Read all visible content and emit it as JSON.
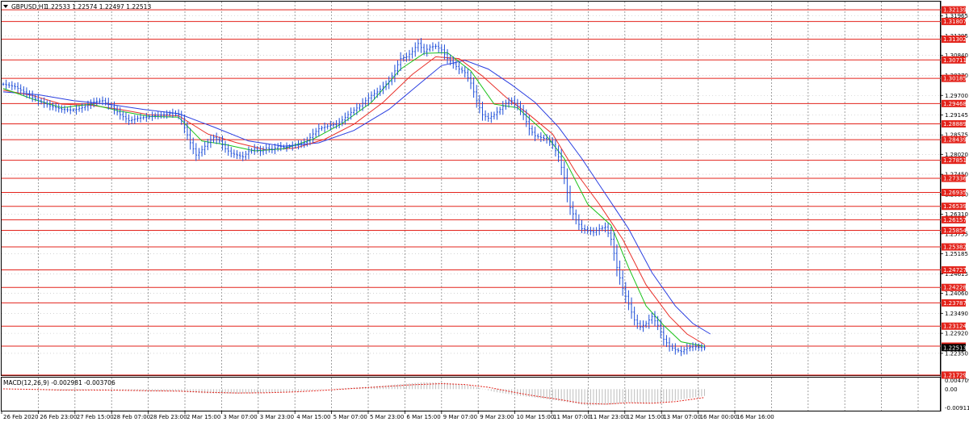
{
  "header": {
    "symbol": "GBPUSD,H1",
    "ohlc": "1.22533 1.22574 1.22497 1.22513",
    "dropdown_icon": "triangle-down-icon"
  },
  "colors": {
    "price_bars": "#1f4fd8",
    "ma_fast": "#19c219",
    "ma_mid": "#e8302a",
    "ma_slow": "#2a3ee0",
    "level_line": "#e3231b",
    "level_tag_bg": "#e3231b",
    "grid": "#888888",
    "macd_histogram": "#bdbdbd",
    "macd_signal": "#e3231b"
  },
  "chart_data": [
    {
      "type": "line",
      "title": "",
      "price_axis_ticks": [
        "1.31965",
        "1.31395",
        "1.30840",
        "1.30270",
        "1.29700",
        "1.29145",
        "1.28575",
        "1.28020",
        "1.27450",
        "1.26880",
        "1.26310",
        "1.25755",
        "1.25185",
        "1.24615",
        "1.24060",
        "1.23490",
        "1.22920",
        "1.22350"
      ],
      "x_tick_labels": [
        "26 Feb 2020",
        "26 Feb 23:00",
        "27 Feb 15:00",
        "28 Feb 07:00",
        "28 Feb 23:00",
        "2 Mar 15:00",
        "3 Mar 07:00",
        "3 Mar 23:00",
        "4 Mar 15:00",
        "5 Mar 07:00",
        "5 Mar 23:00",
        "6 Mar 15:00",
        "9 Mar 07:00",
        "9 Mar 23:00",
        "10 Mar 15:00",
        "11 Mar 07:00",
        "11 Mar 23:00",
        "12 Mar 15:00",
        "13 Mar 07:00",
        "16 Mar 00:00",
        "16 Mar 16:00"
      ],
      "ylim": [
        1.2175,
        1.3235
      ],
      "horizontal_levels": [
        "1.32139",
        "1.31807",
        "1.31302",
        "1.30711",
        "1.30185",
        "1.29468",
        "1.28889",
        "1.28439",
        "1.27851",
        "1.27336",
        "1.26935",
        "1.26539",
        "1.26157",
        "1.25854",
        "1.25382",
        "1.24727",
        "1.24228",
        "1.23787",
        "1.23124",
        "1.22555",
        "1.21729"
      ],
      "current_price": "1.22513",
      "price_series": [
        [
          0,
          1.3002
        ],
        [
          4,
          1.2995
        ],
        [
          8,
          1.2975
        ],
        [
          12,
          1.2955
        ],
        [
          16,
          1.294
        ],
        [
          20,
          1.293
        ],
        [
          24,
          1.2928
        ],
        [
          28,
          1.2938
        ],
        [
          31,
          1.2952
        ],
        [
          34,
          1.2955
        ],
        [
          37,
          1.2938
        ],
        [
          40,
          1.2915
        ],
        [
          43,
          1.2898
        ],
        [
          46,
          1.2905
        ],
        [
          49,
          1.2908
        ],
        [
          52,
          1.2913
        ],
        [
          55,
          1.2915
        ],
        [
          58,
          1.292
        ],
        [
          60,
          1.2915
        ],
        [
          62,
          1.288
        ],
        [
          64,
          1.2835
        ],
        [
          66,
          1.28
        ],
        [
          68,
          1.2815
        ],
        [
          70,
          1.2835
        ],
        [
          72,
          1.285
        ],
        [
          74,
          1.284
        ],
        [
          76,
          1.2818
        ],
        [
          78,
          1.2805
        ],
        [
          80,
          1.28
        ],
        [
          82,
          1.2795
        ],
        [
          84,
          1.281
        ],
        [
          86,
          1.2818
        ],
        [
          88,
          1.281
        ],
        [
          90,
          1.282
        ],
        [
          92,
          1.2815
        ],
        [
          94,
          1.2825
        ],
        [
          96,
          1.2822
        ],
        [
          98,
          1.2825
        ],
        [
          100,
          1.2828
        ],
        [
          102,
          1.2832
        ],
        [
          104,
          1.284
        ],
        [
          106,
          1.286
        ],
        [
          108,
          1.2875
        ],
        [
          110,
          1.288
        ],
        [
          112,
          1.2885
        ],
        [
          114,
          1.2888
        ],
        [
          116,
          1.29
        ],
        [
          118,
          1.2915
        ],
        [
          120,
          1.2928
        ],
        [
          122,
          1.294
        ],
        [
          124,
          1.2955
        ],
        [
          126,
          1.297
        ],
        [
          128,
          1.298
        ],
        [
          130,
          1.2995
        ],
        [
          132,
          1.301
        ],
        [
          134,
          1.304
        ],
        [
          136,
          1.3075
        ],
        [
          138,
          1.308
        ],
        [
          140,
          1.3095
        ],
        [
          142,
          1.3118
        ],
        [
          144,
          1.3095
        ],
        [
          146,
          1.3108
        ],
        [
          148,
          1.311
        ],
        [
          150,
          1.31
        ],
        [
          152,
          1.3075
        ],
        [
          154,
          1.306
        ],
        [
          156,
          1.3045
        ],
        [
          158,
          1.3035
        ],
        [
          160,
          1.3005
        ],
        [
          162,
          1.2955
        ],
        [
          164,
          1.2915
        ],
        [
          166,
          1.2905
        ],
        [
          168,
          1.2915
        ],
        [
          170,
          1.293
        ],
        [
          172,
          1.2948
        ],
        [
          174,
          1.2955
        ],
        [
          176,
          1.294
        ],
        [
          178,
          1.2915
        ],
        [
          180,
          1.2875
        ],
        [
          182,
          1.2855
        ],
        [
          184,
          1.285
        ],
        [
          186,
          1.2845
        ],
        [
          188,
          1.283
        ],
        [
          190,
          1.2795
        ],
        [
          192,
          1.2735
        ],
        [
          194,
          1.265
        ],
        [
          196,
          1.2615
        ],
        [
          198,
          1.259
        ],
        [
          200,
          1.2585
        ],
        [
          202,
          1.258
        ],
        [
          204,
          1.259
        ],
        [
          206,
          1.2595
        ],
        [
          208,
          1.256
        ],
        [
          210,
          1.248
        ],
        [
          212,
          1.242
        ],
        [
          214,
          1.2375
        ],
        [
          216,
          1.233
        ],
        [
          218,
          1.231
        ],
        [
          220,
          1.232
        ],
        [
          222,
          1.234
        ],
        [
          224,
          1.2315
        ],
        [
          226,
          1.2275
        ],
        [
          228,
          1.2255
        ],
        [
          230,
          1.2245
        ],
        [
          232,
          1.224
        ],
        [
          234,
          1.225
        ],
        [
          236,
          1.2255
        ],
        [
          238,
          1.2252
        ],
        [
          240,
          1.2251
        ]
      ],
      "ma_fast_series": [
        [
          0,
          1.299
        ],
        [
          10,
          1.296
        ],
        [
          20,
          1.2935
        ],
        [
          30,
          1.2945
        ],
        [
          40,
          1.2925
        ],
        [
          50,
          1.291
        ],
        [
          60,
          1.2908
        ],
        [
          68,
          1.284
        ],
        [
          76,
          1.283
        ],
        [
          86,
          1.2812
        ],
        [
          96,
          1.2818
        ],
        [
          106,
          1.2845
        ],
        [
          116,
          1.289
        ],
        [
          126,
          1.295
        ],
        [
          136,
          1.3045
        ],
        [
          144,
          1.309
        ],
        [
          152,
          1.3092
        ],
        [
          160,
          1.304
        ],
        [
          168,
          1.2945
        ],
        [
          176,
          1.2935
        ],
        [
          184,
          1.2875
        ],
        [
          192,
          1.279
        ],
        [
          200,
          1.266
        ],
        [
          208,
          1.26
        ],
        [
          214,
          1.248
        ],
        [
          220,
          1.237
        ],
        [
          226,
          1.2315
        ],
        [
          232,
          1.2268
        ],
        [
          240,
          1.2255
        ]
      ],
      "ma_mid_series": [
        [
          0,
          1.2985
        ],
        [
          10,
          1.297
        ],
        [
          20,
          1.2945
        ],
        [
          30,
          1.2942
        ],
        [
          40,
          1.293
        ],
        [
          50,
          1.2915
        ],
        [
          60,
          1.2912
        ],
        [
          70,
          1.286
        ],
        [
          80,
          1.2835
        ],
        [
          90,
          1.2815
        ],
        [
          100,
          1.282
        ],
        [
          110,
          1.2845
        ],
        [
          120,
          1.2888
        ],
        [
          130,
          1.295
        ],
        [
          140,
          1.303
        ],
        [
          148,
          1.308
        ],
        [
          156,
          1.3075
        ],
        [
          164,
          1.3025
        ],
        [
          172,
          1.2965
        ],
        [
          180,
          1.2915
        ],
        [
          188,
          1.286
        ],
        [
          196,
          1.275
        ],
        [
          204,
          1.266
        ],
        [
          212,
          1.256
        ],
        [
          220,
          1.243
        ],
        [
          228,
          1.234
        ],
        [
          234,
          1.229
        ],
        [
          240,
          1.226
        ]
      ],
      "ma_slow_series": [
        [
          0,
          1.298
        ],
        [
          12,
          1.2972
        ],
        [
          24,
          1.2955
        ],
        [
          36,
          1.2945
        ],
        [
          48,
          1.293
        ],
        [
          60,
          1.2918
        ],
        [
          72,
          1.288
        ],
        [
          84,
          1.284
        ],
        [
          96,
          1.2825
        ],
        [
          108,
          1.2835
        ],
        [
          120,
          1.287
        ],
        [
          132,
          1.293
        ],
        [
          142,
          1.3
        ],
        [
          150,
          1.3055
        ],
        [
          158,
          1.307
        ],
        [
          166,
          1.3045
        ],
        [
          174,
          1.3
        ],
        [
          182,
          1.295
        ],
        [
          190,
          1.288
        ],
        [
          198,
          1.279
        ],
        [
          206,
          1.269
        ],
        [
          214,
          1.259
        ],
        [
          222,
          1.2465
        ],
        [
          230,
          1.237
        ],
        [
          236,
          1.232
        ],
        [
          242,
          1.229
        ]
      ]
    },
    {
      "type": "bar",
      "title": "MACD(12,26,9) -0.002981 -0.003706",
      "ylim": [
        -0.009112,
        0.004709
      ],
      "axis_ticks": [
        "0.004709",
        "0.00",
        "-0.009112"
      ],
      "histogram": [
        [
          0,
          0.0
        ],
        [
          10,
          -0.0003
        ],
        [
          20,
          -0.0006
        ],
        [
          30,
          -0.0004
        ],
        [
          40,
          -0.0007
        ],
        [
          50,
          -0.0009
        ],
        [
          60,
          -0.001
        ],
        [
          68,
          -0.0018
        ],
        [
          76,
          -0.002
        ],
        [
          86,
          -0.0018
        ],
        [
          96,
          -0.0013
        ],
        [
          106,
          -0.0005
        ],
        [
          116,
          0.0004
        ],
        [
          126,
          0.0012
        ],
        [
          136,
          0.0022
        ],
        [
          144,
          0.003
        ],
        [
          152,
          0.0028
        ],
        [
          160,
          0.0015
        ],
        [
          168,
          -0.0012
        ],
        [
          176,
          -0.0028
        ],
        [
          184,
          -0.004
        ],
        [
          192,
          -0.0055
        ],
        [
          200,
          -0.0072
        ],
        [
          208,
          -0.0068
        ],
        [
          214,
          -0.0058
        ],
        [
          220,
          -0.0065
        ],
        [
          226,
          -0.006
        ],
        [
          232,
          -0.0045
        ],
        [
          240,
          -0.003
        ]
      ],
      "signal": [
        [
          0,
          0.0001
        ],
        [
          10,
          -0.0001
        ],
        [
          20,
          -0.0004
        ],
        [
          30,
          -0.0004
        ],
        [
          40,
          -0.0005
        ],
        [
          50,
          -0.0007
        ],
        [
          60,
          -0.0009
        ],
        [
          70,
          -0.0014
        ],
        [
          80,
          -0.0017
        ],
        [
          90,
          -0.0016
        ],
        [
          100,
          -0.0012
        ],
        [
          110,
          -0.0005
        ],
        [
          120,
          0.0003
        ],
        [
          130,
          0.0011
        ],
        [
          140,
          0.0019
        ],
        [
          150,
          0.0024
        ],
        [
          158,
          0.002
        ],
        [
          166,
          0.0008
        ],
        [
          174,
          -0.0012
        ],
        [
          182,
          -0.003
        ],
        [
          190,
          -0.0045
        ],
        [
          198,
          -0.0062
        ],
        [
          206,
          -0.0066
        ],
        [
          214,
          -0.006
        ],
        [
          222,
          -0.0062
        ],
        [
          230,
          -0.0055
        ],
        [
          240,
          -0.0037
        ]
      ]
    }
  ]
}
